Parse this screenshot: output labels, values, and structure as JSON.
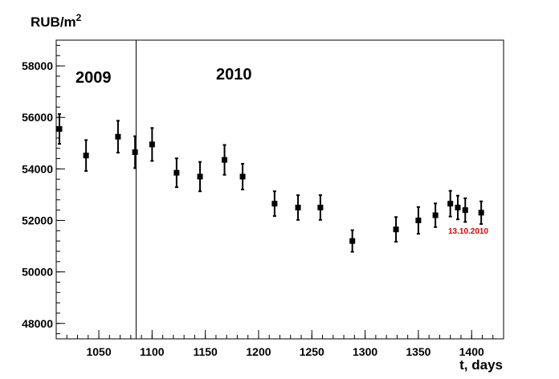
{
  "chart_data": {
    "type": "scatter",
    "title": "",
    "xlabel": "t, days",
    "ylabel": "RUB/m",
    "ylabel_superscript": "2",
    "xlim": [
      1010,
      1430
    ],
    "ylim": [
      47400,
      59000
    ],
    "x_ticks": [
      1050,
      1100,
      1150,
      1200,
      1250,
      1300,
      1350,
      1400
    ],
    "y_ticks": [
      48000,
      50000,
      52000,
      54000,
      56000,
      58000
    ],
    "grid": false,
    "points": [
      {
        "x": 1013,
        "y": 55550,
        "err": 580
      },
      {
        "x": 1038,
        "y": 54520,
        "err": 600
      },
      {
        "x": 1068,
        "y": 55250,
        "err": 620
      },
      {
        "x": 1084,
        "y": 54650,
        "err": 620
      },
      {
        "x": 1100,
        "y": 54950,
        "err": 640
      },
      {
        "x": 1123,
        "y": 53850,
        "err": 560
      },
      {
        "x": 1145,
        "y": 53700,
        "err": 570
      },
      {
        "x": 1168,
        "y": 54350,
        "err": 580
      },
      {
        "x": 1185,
        "y": 53700,
        "err": 500
      },
      {
        "x": 1215,
        "y": 52650,
        "err": 480
      },
      {
        "x": 1237,
        "y": 52500,
        "err": 480
      },
      {
        "x": 1258,
        "y": 52500,
        "err": 480
      },
      {
        "x": 1288,
        "y": 51200,
        "err": 420
      },
      {
        "x": 1329,
        "y": 51650,
        "err": 480
      },
      {
        "x": 1350,
        "y": 52000,
        "err": 520
      },
      {
        "x": 1366,
        "y": 52200,
        "err": 460
      },
      {
        "x": 1380,
        "y": 52650,
        "err": 500
      },
      {
        "x": 1387,
        "y": 52500,
        "err": 460
      },
      {
        "x": 1394,
        "y": 52400,
        "err": 460
      },
      {
        "x": 1409,
        "y": 52300,
        "err": 440
      }
    ],
    "vline_x": 1085,
    "annotations": {
      "year_left": "2009",
      "year_right": "2010",
      "date_label": "13.10.2010"
    },
    "colors": {
      "axis": "#000000",
      "marker": "#000000",
      "annotation": "#e00000"
    }
  }
}
